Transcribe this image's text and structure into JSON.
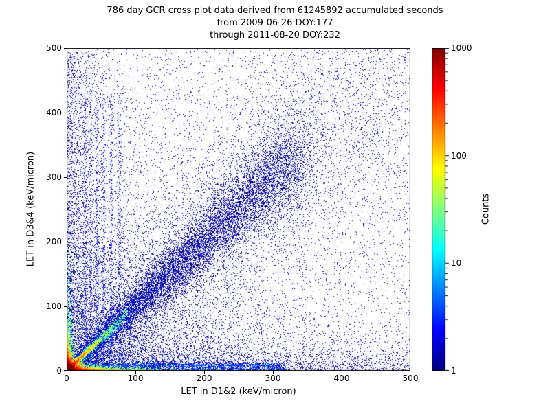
{
  "chart_data": {
    "type": "heatmap",
    "title": "786 day GCR cross plot data derived from 61245892 accumulated seconds",
    "subtitle1": "from 2009-06-26 DOY:177",
    "subtitle2": "through 2011-08-20 DOY:232",
    "xlabel": "LET in D1&2 (keV/micron)",
    "ylabel": "LET in D3&4 (keV/micron)",
    "xlim": [
      0,
      500
    ],
    "ylim": [
      0,
      500
    ],
    "x_ticks": [
      0,
      100,
      200,
      300,
      400,
      500
    ],
    "y_ticks": [
      0,
      100,
      200,
      300,
      400,
      500
    ],
    "grid": false,
    "background_color": "#ffffff",
    "colorbar": {
      "label": "Counts",
      "scale": "log",
      "min": 1,
      "max": 1000,
      "ticks": [
        1,
        10,
        100,
        1000
      ],
      "colormap": "jet"
    },
    "seed": 42,
    "density_features": [
      {
        "type": "uniform",
        "n": 6000,
        "w": 1
      },
      {
        "type": "exp2d",
        "n": 9000,
        "sx": 120,
        "sy": 120,
        "w": 1
      },
      {
        "type": "band_y",
        "n": 2500,
        "sx": 20,
        "y0": 0,
        "y_max": 495,
        "w": 1
      },
      {
        "type": "band_x",
        "n": 2500,
        "sy": 18,
        "x0": 0,
        "x_max": 500,
        "w": 1
      },
      {
        "type": "diag",
        "n": 14000,
        "t_min": 0,
        "t_max": 340,
        "sigma0": 6,
        "sigma_slope": 0.09,
        "w": 1
      },
      {
        "type": "diag",
        "n": 6000,
        "t_min": 80,
        "t_max": 500,
        "sigma0": 40,
        "sigma_slope": 0.18,
        "sigma0x": 15,
        "sigma_slopex": 0.05,
        "w": 1
      },
      {
        "type": "diag",
        "n": 3500,
        "t_dist": "exp",
        "t_scale": 28,
        "t_min": 0,
        "t_max": 90,
        "sigma0": 1.2,
        "sigma_slope": 0.04,
        "w": 18
      },
      {
        "type": "exp2d",
        "n": 4000,
        "sx": 6,
        "sy": 6,
        "w": 60
      },
      {
        "type": "exp2d",
        "n": 3000,
        "sx": 35,
        "sy": 2.5,
        "w": 25
      },
      {
        "type": "exp2d",
        "n": 2500,
        "sx": 2.5,
        "sy": 28,
        "w": 20
      },
      {
        "type": "vlines",
        "xs": [
          27,
          35,
          44,
          54,
          65,
          77
        ],
        "n_each": 350,
        "y_min": 15,
        "y_max": 430,
        "pow": 1.3,
        "jitter": 1.2,
        "w": 2
      },
      {
        "type": "hline",
        "n": 1500,
        "y0": 9,
        "sigma": 2,
        "x_max": 310,
        "w": 2
      },
      {
        "type": "band_x",
        "n": 2000,
        "sy": 5,
        "x0": 0,
        "x_max": 320,
        "w": 2
      }
    ]
  }
}
